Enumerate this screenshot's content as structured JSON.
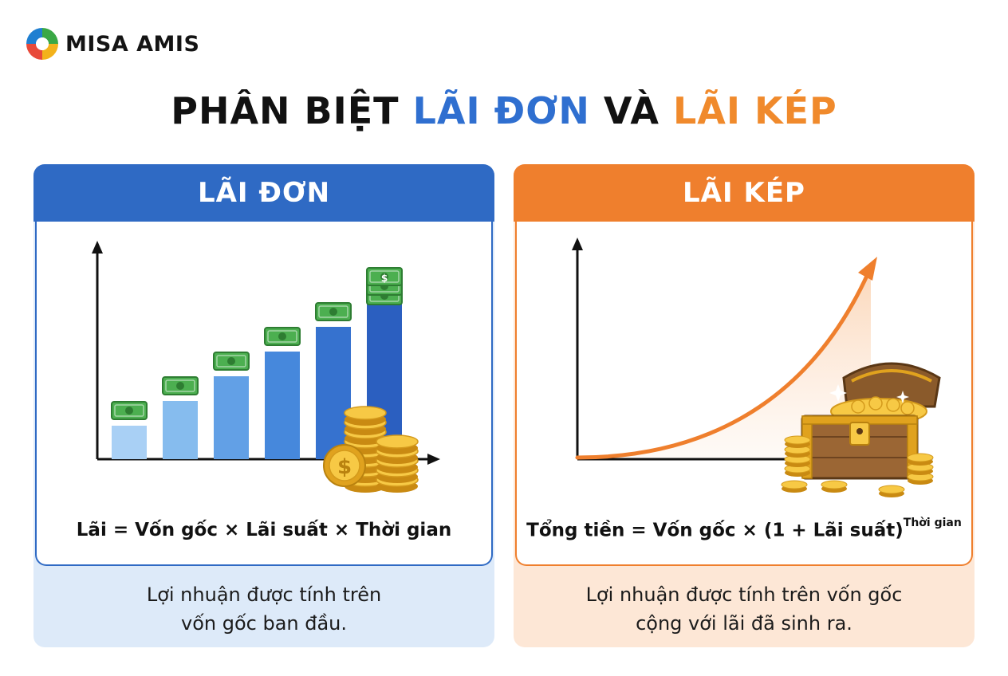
{
  "brand": {
    "name": "MISA AMIS"
  },
  "title": {
    "part1": "PHÂN BIỆT ",
    "part2": "LÃI ĐƠN",
    "part3": " VÀ ",
    "part4": "LÃI KÉP"
  },
  "colors": {
    "simple_accent": "#2f6ac4",
    "compound_accent": "#ef7f2d",
    "simple_caption_bg": "#ddeaf9",
    "compound_caption_bg": "#fde7d6"
  },
  "simple": {
    "header": "LÃI ĐƠN",
    "formula": "Lãi = Vốn gốc × Lãi suất × Thời gian",
    "caption_line1": "Lợi nhuận được tính trên",
    "caption_line2": "vốn gốc ban đầu."
  },
  "compound": {
    "header": "LÃI KÉP",
    "formula_main": "Tổng tiền = Vốn gốc × (1 + Lãi suất)",
    "formula_exponent": "Thời gian",
    "caption_line1": "Lợi nhuận được tính trên vốn gốc",
    "caption_line2": "cộng với lãi đã sinh ra."
  },
  "icons": [
    "misa-amis-logo-icon",
    "banknote-icon",
    "coin-stack-icon",
    "dollar-coin-icon",
    "treasure-chest-icon",
    "growth-arrow-icon"
  ]
}
